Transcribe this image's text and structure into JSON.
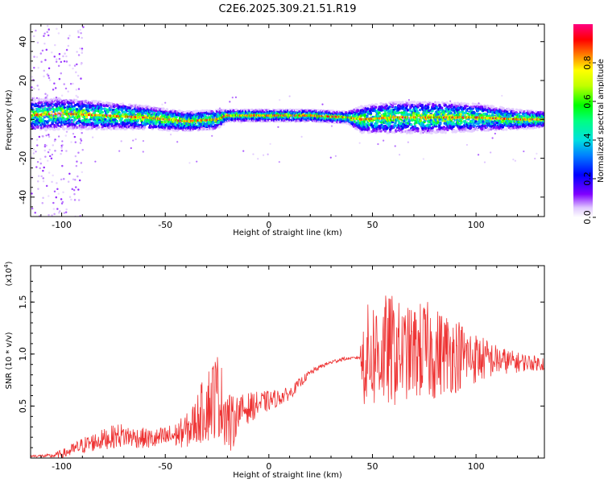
{
  "title": "C2E6.2025.309.21.51.R19",
  "colors": {
    "snr_line": "#ee3333",
    "axis": "#000000",
    "background": "#ffffff"
  },
  "chart_data": [
    {
      "type": "heatmap",
      "title": "C2E6.2025.309.21.51.R19",
      "xlabel": "Height of straight line (km)",
      "ylabel": "Frequency (Hz)",
      "xlim": [
        -115,
        133
      ],
      "ylim": [
        -50,
        49
      ],
      "xticks": [
        -100,
        -50,
        0,
        50,
        100
      ],
      "yticks": [
        40,
        20,
        0,
        -20,
        -40
      ],
      "colorbar": {
        "label": "Normalized spectral amplitude",
        "range": [
          0.0,
          1.0
        ],
        "ticks": [
          0.0,
          0.2,
          0.4,
          0.6,
          0.8
        ],
        "tick_labels": [
          "0.0",
          "0.2",
          "0.4",
          "0.6",
          "0.8"
        ]
      },
      "ridge": {
        "description": "main spectral ridge centred near 0 Hz",
        "x": [
          -115,
          -100,
          -80,
          -60,
          -40,
          -25,
          -20,
          -10,
          0,
          20,
          38,
          45,
          60,
          80,
          100,
          120,
          133
        ],
        "center_hz": [
          2,
          3,
          2,
          1,
          -1,
          0,
          2,
          2,
          2,
          2,
          1,
          0,
          1,
          1,
          1,
          0,
          0
        ],
        "halfwidth_hz": [
          8,
          8,
          7,
          6,
          5,
          5,
          3,
          3,
          3,
          3,
          3,
          7,
          8,
          8,
          7,
          5,
          4
        ]
      }
    },
    {
      "type": "line",
      "title": "",
      "xlabel": "Height of straight line (km)",
      "ylabel": "SNR (10 * v/v)",
      "y_scale_label": "(x10",
      "y_scale_exponent": "4",
      "xlim": [
        -115,
        133
      ],
      "ylim": [
        0,
        1.85
      ],
      "xticks": [
        -100,
        -50,
        0,
        50,
        100
      ],
      "yticks": [
        0.5,
        1.0,
        1.5
      ],
      "ytick_labels": [
        "0.5",
        "1.0",
        "1.5"
      ],
      "series": [
        {
          "name": "SNR",
          "x": [
            -115,
            -105,
            -98,
            -90,
            -80,
            -72,
            -65,
            -55,
            -45,
            -38,
            -33,
            -28,
            -25,
            -22,
            -18,
            -15,
            -10,
            -5,
            0,
            5,
            10,
            15,
            20,
            25,
            30,
            35,
            40,
            44,
            45,
            50,
            55,
            60,
            65,
            70,
            75,
            80,
            85,
            90,
            95,
            100,
            105,
            110,
            115,
            120,
            125,
            130,
            133
          ],
          "values": [
            0.02,
            0.02,
            0.05,
            0.12,
            0.18,
            0.22,
            0.2,
            0.18,
            0.22,
            0.28,
            0.42,
            0.55,
            0.62,
            0.5,
            0.3,
            0.45,
            0.48,
            0.52,
            0.55,
            0.58,
            0.62,
            0.72,
            0.82,
            0.88,
            0.92,
            0.95,
            0.96,
            0.97,
            0.95,
            1.0,
            1.02,
            1.03,
            1.0,
            1.02,
            1.03,
            1.0,
            1.02,
            1.0,
            0.98,
            0.96,
            0.95,
            0.94,
            0.93,
            0.92,
            0.92,
            0.91,
            0.91
          ],
          "amplitude": [
            0.01,
            0.02,
            0.05,
            0.08,
            0.1,
            0.12,
            0.1,
            0.1,
            0.12,
            0.18,
            0.28,
            0.4,
            0.42,
            0.35,
            0.3,
            0.15,
            0.15,
            0.12,
            0.1,
            0.08,
            0.06,
            0.05,
            0.03,
            0.02,
            0.02,
            0.02,
            0.01,
            0.02,
            0.45,
            0.55,
            0.55,
            0.55,
            0.45,
            0.45,
            0.5,
            0.45,
            0.4,
            0.38,
            0.3,
            0.25,
            0.2,
            0.15,
            0.12,
            0.1,
            0.08,
            0.07,
            0.07
          ]
        }
      ]
    }
  ]
}
